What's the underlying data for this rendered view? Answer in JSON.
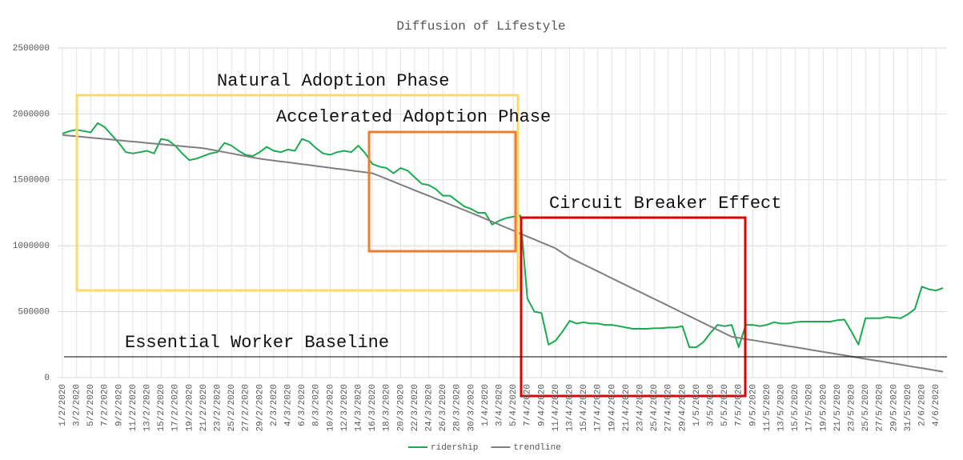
{
  "chart_data": {
    "type": "line",
    "title": "Diffusion of Lifestyle",
    "categories": [
      "1/2/2020",
      null,
      "3/2/2020",
      null,
      "5/2/2020",
      null,
      "7/2/2020",
      null,
      "9/2/2020",
      null,
      "11/2/2020",
      null,
      "13/2/2020",
      null,
      "15/2/2020",
      null,
      "17/2/2020",
      null,
      "19/2/2020",
      null,
      "21/2/2020",
      null,
      "23/2/2020",
      null,
      "25/2/2020",
      null,
      "27/2/2020",
      null,
      "29/2/2020",
      null,
      "2/3/2020",
      null,
      "4/3/2020",
      null,
      "6/3/2020",
      null,
      "8/3/2020",
      null,
      "10/3/2020",
      null,
      "12/3/2020",
      null,
      "14/3/2020",
      null,
      "16/3/2020",
      null,
      "18/3/2020",
      null,
      "20/3/2020",
      null,
      "22/3/2020",
      null,
      "24/3/2020",
      null,
      "26/3/2020",
      null,
      "28/3/2020",
      null,
      "30/3/2020",
      null,
      "1/4/2020",
      null,
      "3/4/2020",
      null,
      "5/4/2020",
      null,
      "7/4/2020",
      null,
      "9/4/2020",
      null,
      "11/4/2020",
      null,
      "13/4/2020",
      null,
      "15/4/2020",
      null,
      "17/4/2020",
      null,
      "19/4/2020",
      null,
      "21/4/2020",
      null,
      "23/4/2020",
      null,
      "25/4/2020",
      null,
      "27/4/2020",
      null,
      "29/4/2020",
      null,
      "1/5/2020",
      null,
      "3/5/2020",
      null,
      "5/5/2020",
      null,
      "7/5/2020",
      null,
      "9/5/2020",
      null,
      "11/5/2020",
      null,
      "13/5/2020",
      null,
      "15/5/2020",
      null,
      "17/5/2020",
      null,
      "19/5/2020",
      null,
      "21/5/2020",
      null,
      "23/5/2020",
      null,
      "25/5/2020",
      null,
      "27/5/2020",
      null,
      "29/5/2020",
      null,
      "31/5/2020",
      null,
      "2/6/2020",
      null,
      "4/6/2020",
      null
    ],
    "series": [
      {
        "name": "ridership",
        "color": "#1aab50",
        "values": [
          1850000,
          1870000,
          1880000,
          1870000,
          1860000,
          1930000,
          1900000,
          1840000,
          1780000,
          1710000,
          1700000,
          1710000,
          1720000,
          1700000,
          1810000,
          1800000,
          1760000,
          1700000,
          1650000,
          1660000,
          1680000,
          1700000,
          1710000,
          1780000,
          1760000,
          1720000,
          1690000,
          1680000,
          1710000,
          1750000,
          1720000,
          1710000,
          1730000,
          1720000,
          1810000,
          1790000,
          1740000,
          1700000,
          1690000,
          1710000,
          1720000,
          1710000,
          1760000,
          1700000,
          1620000,
          1600000,
          1590000,
          1550000,
          1590000,
          1570000,
          1520000,
          1470000,
          1460000,
          1430000,
          1380000,
          1380000,
          1340000,
          1300000,
          1280000,
          1250000,
          1250000,
          1160000,
          1190000,
          1210000,
          1220000,
          1230000,
          600000,
          500000,
          490000,
          250000,
          280000,
          350000,
          430000,
          410000,
          420000,
          410000,
          410000,
          400000,
          400000,
          390000,
          380000,
          370000,
          370000,
          370000,
          375000,
          375000,
          380000,
          380000,
          390000,
          230000,
          230000,
          270000,
          340000,
          400000,
          390000,
          400000,
          230000,
          400000,
          400000,
          390000,
          400000,
          420000,
          410000,
          410000,
          420000,
          425000,
          425000,
          425000,
          425000,
          425000,
          435000,
          440000,
          350000,
          250000,
          450000,
          450000,
          450000,
          460000,
          455000,
          450000,
          480000,
          520000,
          690000,
          670000,
          660000,
          680000
        ]
      },
      {
        "name": "trendline",
        "color": "#7f7f7f",
        "values": [
          1840000,
          1835000,
          1830000,
          1825000,
          1820000,
          1815000,
          1810000,
          1805000,
          1800000,
          1795000,
          1790000,
          1785000,
          1780000,
          1775000,
          1770000,
          1765000,
          1760000,
          1755000,
          1750000,
          1745000,
          1740000,
          1730000,
          1720000,
          1710000,
          1700000,
          1690000,
          1680000,
          1670000,
          1660000,
          1653000,
          1646000,
          1639000,
          1633000,
          1626000,
          1619000,
          1612000,
          1605000,
          1598000,
          1591000,
          1584000,
          1578000,
          1571000,
          1564000,
          1557000,
          1550000,
          1529000,
          1507000,
          1486000,
          1464000,
          1443000,
          1421000,
          1400000,
          1379000,
          1357000,
          1336000,
          1314000,
          1293000,
          1271000,
          1250000,
          1228000,
          1205000,
          1183000,
          1160000,
          1138000,
          1115000,
          1093000,
          1070000,
          1048000,
          1025000,
          1003000,
          980000,
          945000,
          910000,
          884000,
          858000,
          832000,
          806000,
          780000,
          753000,
          727000,
          701000,
          675000,
          649000,
          623000,
          597000,
          571000,
          545000,
          519000,
          492000,
          466000,
          440000,
          414000,
          388000,
          362000,
          336000,
          310000,
          301000,
          292000,
          284000,
          275000,
          266000,
          257000,
          248000,
          239000,
          231000,
          222000,
          213000,
          204000,
          195000,
          186000,
          178000,
          169000,
          160000,
          151000,
          142000,
          133000,
          125000,
          116000,
          107000,
          98000,
          89000,
          80000,
          72000,
          63000,
          54000,
          45000
        ]
      }
    ],
    "ylim": [
      0,
      2500000
    ],
    "yticks": [
      0,
      500000,
      1000000,
      1500000,
      2000000,
      2500000
    ],
    "grid": true,
    "legend": "bottom",
    "annotations": [
      "Natural Adoption Phase",
      "Accelerated Adoption Phase",
      "Circuit Breaker Effect"
    ],
    "reference_line": {
      "label": "Essential Worker Baseline",
      "value": 158000
    }
  }
}
